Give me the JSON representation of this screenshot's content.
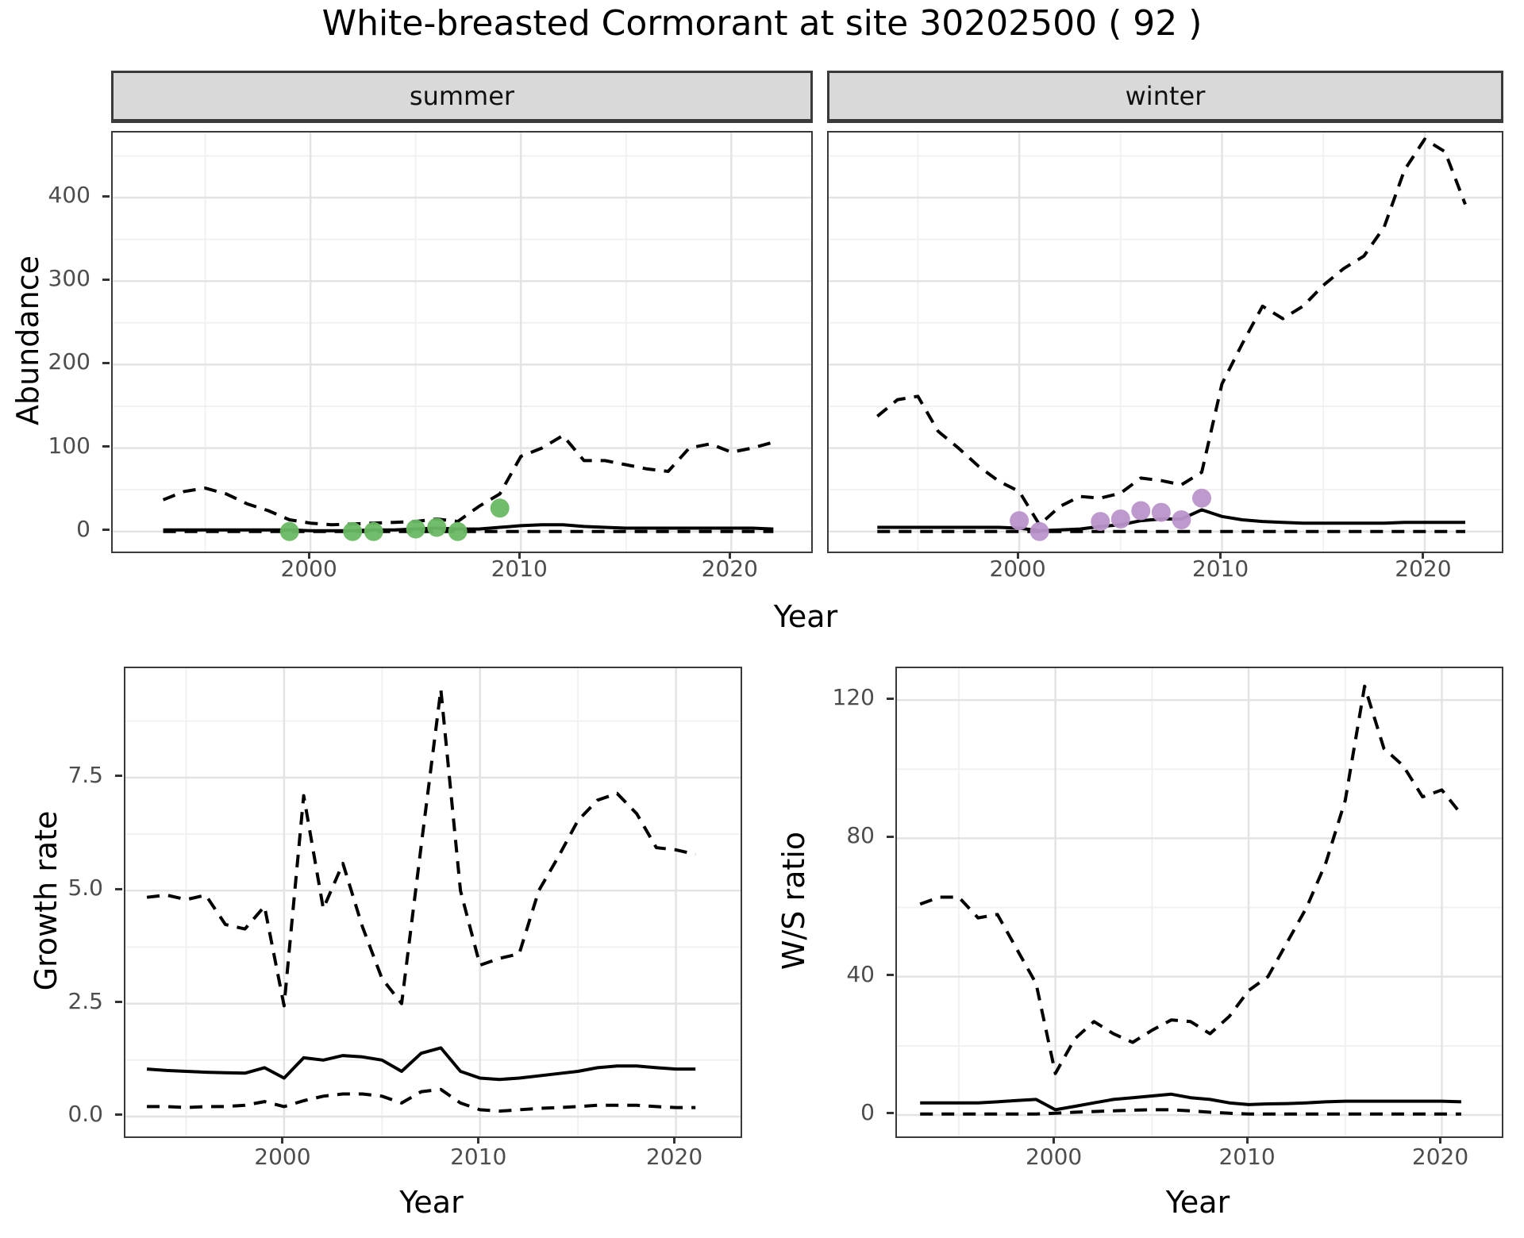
{
  "title": "White-breasted Cormorant at site 30202500 ( 92 )",
  "colors": {
    "summer_point": "#6AB964",
    "winter_point": "#BA94CA",
    "line": "#000000",
    "strip_bg": "#d9d9d9",
    "grid_major": "#e3e3e3",
    "grid_minor": "#f1f1f1",
    "axis_text": "#4d4d4d",
    "panel_border": "#3a3a3a"
  },
  "chart_data": [
    {
      "id": "abundance_summer",
      "type": "line",
      "facet_label": "summer",
      "xlabel": "Year",
      "ylabel": "Abundance",
      "xlim": [
        1990.6,
        2023.8
      ],
      "ylim": [
        -24,
        478
      ],
      "x_ticks": [
        2000,
        2010,
        2020
      ],
      "x_tick_labels": [
        "2000",
        "2010",
        "2020"
      ],
      "x_minor": [
        1995,
        2005,
        2015
      ],
      "y_ticks": [
        0,
        100,
        200,
        300,
        400
      ],
      "y_tick_labels": [
        "0",
        "100",
        "200",
        "300",
        "400"
      ],
      "y_minor": [
        50,
        150,
        250,
        350,
        450
      ],
      "grid": true,
      "legend": "none",
      "years": [
        1993,
        1994,
        1995,
        1996,
        1997,
        1998,
        1999,
        2000,
        2001,
        2002,
        2003,
        2004,
        2005,
        2006,
        2007,
        2008,
        2009,
        2010,
        2011,
        2012,
        2013,
        2014,
        2015,
        2016,
        2017,
        2018,
        2019,
        2020,
        2021,
        2022
      ],
      "series": [
        {
          "name": "upper_ci",
          "style": "dashed",
          "values": [
            38,
            48,
            52,
            45,
            33,
            25,
            14,
            10,
            8,
            9,
            10,
            11,
            12,
            15,
            12,
            30,
            45,
            90,
            100,
            115,
            85,
            85,
            80,
            75,
            72,
            100,
            105,
            95,
            100,
            107
          ]
        },
        {
          "name": "median",
          "style": "solid",
          "values": [
            2,
            2,
            2,
            2,
            2,
            2,
            2,
            1,
            1,
            1,
            2,
            2,
            3,
            4,
            3,
            3,
            5,
            7,
            8,
            8,
            6,
            5,
            4,
            4,
            4,
            4,
            4,
            4,
            4,
            3
          ]
        },
        {
          "name": "lower_ci",
          "style": "dashed",
          "values": [
            0,
            0,
            0,
            0,
            0,
            0,
            0,
            0,
            0,
            0,
            0,
            0,
            0,
            0,
            0,
            0,
            0,
            0,
            0,
            0,
            0,
            0,
            0,
            0,
            0,
            0,
            0,
            0,
            0,
            0
          ]
        }
      ],
      "points": {
        "name": "summer_observations",
        "color": "#6AB964",
        "years": [
          1999,
          2002,
          2003,
          2005,
          2006,
          2007,
          2009
        ],
        "values": [
          0,
          0,
          0,
          3,
          5,
          0,
          28
        ]
      }
    },
    {
      "id": "abundance_winter",
      "type": "line",
      "facet_label": "winter",
      "xlabel": "Year",
      "ylabel": "Abundance",
      "xlim": [
        1990.6,
        2023.8
      ],
      "ylim": [
        -24,
        478
      ],
      "x_ticks": [
        2000,
        2010,
        2020
      ],
      "x_tick_labels": [
        "2000",
        "2010",
        "2020"
      ],
      "x_minor": [
        1995,
        2005,
        2015
      ],
      "y_ticks": [
        0,
        100,
        200,
        300,
        400
      ],
      "y_tick_labels": [
        "0",
        "100",
        "200",
        "300",
        "400"
      ],
      "y_minor": [
        50,
        150,
        250,
        350,
        450
      ],
      "grid": true,
      "legend": "none",
      "years": [
        1993,
        1994,
        1995,
        1996,
        1997,
        1998,
        1999,
        2000,
        2001,
        2002,
        2003,
        2004,
        2005,
        2006,
        2007,
        2008,
        2009,
        2010,
        2011,
        2012,
        2013,
        2014,
        2015,
        2016,
        2017,
        2018,
        2019,
        2020,
        2021,
        2022
      ],
      "series": [
        {
          "name": "upper_ci",
          "style": "dashed",
          "values": [
            138,
            158,
            162,
            120,
            100,
            78,
            60,
            48,
            8,
            30,
            42,
            40,
            46,
            64,
            61,
            56,
            71,
            177,
            225,
            270,
            255,
            270,
            295,
            315,
            330,
            365,
            433,
            470,
            455,
            392
          ]
        },
        {
          "name": "median",
          "style": "solid",
          "values": [
            5,
            5,
            5,
            5,
            5,
            5,
            5,
            4,
            1,
            2,
            3,
            6,
            8,
            13,
            15,
            15,
            26,
            18,
            14,
            12,
            11,
            10,
            10,
            10,
            10,
            10,
            11,
            11,
            11,
            11
          ]
        },
        {
          "name": "lower_ci",
          "style": "dashed",
          "values": [
            0,
            0,
            0,
            0,
            0,
            0,
            0,
            0,
            0,
            0,
            0,
            0,
            0,
            0,
            0,
            0,
            0,
            0,
            0,
            0,
            0,
            0,
            0,
            0,
            0,
            0,
            0,
            0,
            0,
            0
          ]
        }
      ],
      "points": {
        "name": "winter_observations",
        "color": "#BA94CA",
        "years": [
          2000,
          2001,
          2004,
          2005,
          2006,
          2007,
          2008,
          2009
        ],
        "values": [
          13,
          0,
          12,
          15,
          25,
          23,
          14,
          40
        ]
      }
    },
    {
      "id": "growth_rate",
      "type": "line",
      "facet_label": "",
      "xlabel": "Year",
      "ylabel": "Growth rate",
      "xlim": [
        1991.9,
        2023.3
      ],
      "ylim": [
        -0.44,
        9.92
      ],
      "x_ticks": [
        2000,
        2010,
        2020
      ],
      "x_tick_labels": [
        "2000",
        "2010",
        "2020"
      ],
      "x_minor": [
        1995,
        2005,
        2015
      ],
      "y_ticks": [
        0,
        2.5,
        5,
        7.5
      ],
      "y_tick_labels": [
        "0.0",
        "2.5",
        "5.0",
        "7.5"
      ],
      "y_minor": [
        1.25,
        3.75,
        6.25,
        8.75
      ],
      "grid": true,
      "legend": "none",
      "years": [
        1993,
        1994,
        1995,
        1996,
        1997,
        1998,
        1999,
        2000,
        2001,
        2002,
        2003,
        2004,
        2005,
        2006,
        2007,
        2008,
        2009,
        2010,
        2011,
        2012,
        2013,
        2014,
        2015,
        2016,
        2017,
        2018,
        2019,
        2020,
        2021
      ],
      "series": [
        {
          "name": "upper_ci",
          "style": "dashed",
          "values": [
            4.85,
            4.9,
            4.8,
            4.9,
            4.25,
            4.15,
            4.65,
            2.45,
            7.1,
            4.6,
            5.6,
            4.2,
            3.05,
            2.5,
            6.0,
            9.45,
            5.0,
            3.35,
            3.5,
            3.6,
            5.0,
            5.75,
            6.55,
            7.0,
            7.15,
            6.7,
            5.95,
            5.9,
            5.8
          ]
        },
        {
          "name": "median",
          "style": "solid",
          "values": [
            1.05,
            1.02,
            1.0,
            0.98,
            0.97,
            0.96,
            1.08,
            0.85,
            1.3,
            1.25,
            1.35,
            1.32,
            1.25,
            1.0,
            1.4,
            1.52,
            1.0,
            0.85,
            0.82,
            0.85,
            0.9,
            0.95,
            1.0,
            1.08,
            1.12,
            1.12,
            1.08,
            1.05,
            1.05
          ]
        },
        {
          "name": "lower_ci",
          "style": "dashed",
          "values": [
            0.22,
            0.22,
            0.2,
            0.22,
            0.22,
            0.25,
            0.33,
            0.22,
            0.35,
            0.45,
            0.5,
            0.5,
            0.45,
            0.3,
            0.55,
            0.6,
            0.3,
            0.15,
            0.12,
            0.15,
            0.18,
            0.2,
            0.22,
            0.25,
            0.25,
            0.25,
            0.22,
            0.2,
            0.2
          ]
        }
      ],
      "points": null
    },
    {
      "id": "ws_ratio",
      "type": "line",
      "facet_label": "",
      "xlabel": "Year",
      "ylabel": "W/S ratio",
      "xlim": [
        1991.8,
        2023.1
      ],
      "ylim": [
        -6.2,
        129.2
      ],
      "x_ticks": [
        2000,
        2010,
        2020
      ],
      "x_tick_labels": [
        "2000",
        "2010",
        "2020"
      ],
      "x_minor": [
        1995,
        2005,
        2015
      ],
      "y_ticks": [
        0,
        40,
        80,
        120
      ],
      "y_tick_labels": [
        "0",
        "40",
        "80",
        "120"
      ],
      "y_minor": [
        20,
        60,
        100
      ],
      "grid": true,
      "legend": "none",
      "years": [
        1993,
        1994,
        1995,
        1996,
        1997,
        1998,
        1999,
        2000,
        2001,
        2002,
        2003,
        2004,
        2005,
        2006,
        2007,
        2008,
        2009,
        2010,
        2011,
        2012,
        2013,
        2014,
        2015,
        2016,
        2017,
        2018,
        2019,
        2020,
        2021
      ],
      "series": [
        {
          "name": "upper_ci",
          "style": "dashed",
          "values": [
            61,
            63,
            63,
            57,
            58,
            48,
            38,
            12,
            22,
            27,
            23.5,
            21,
            24.5,
            27.5,
            27,
            23.5,
            28.5,
            36,
            40,
            50,
            60,
            73,
            91,
            124,
            106,
            101,
            92,
            94,
            87
          ]
        },
        {
          "name": "median",
          "style": "solid",
          "values": [
            3.5,
            3.5,
            3.5,
            3.5,
            3.8,
            4.2,
            4.5,
            1.5,
            2.5,
            3.5,
            4.5,
            5,
            5.5,
            6,
            5,
            4.5,
            3.5,
            3,
            3.2,
            3.3,
            3.5,
            3.8,
            4,
            4,
            4,
            4,
            4,
            4,
            3.8
          ]
        },
        {
          "name": "lower_ci",
          "style": "dashed",
          "values": [
            0.3,
            0.3,
            0.3,
            0.3,
            0.3,
            0.3,
            0.3,
            0.5,
            0.8,
            1.0,
            1.2,
            1.4,
            1.5,
            1.5,
            1.2,
            0.8,
            0.5,
            0.3,
            0.3,
            0.3,
            0.3,
            0.3,
            0.3,
            0.3,
            0.3,
            0.3,
            0.3,
            0.3,
            0.3
          ]
        }
      ],
      "points": null
    }
  ]
}
